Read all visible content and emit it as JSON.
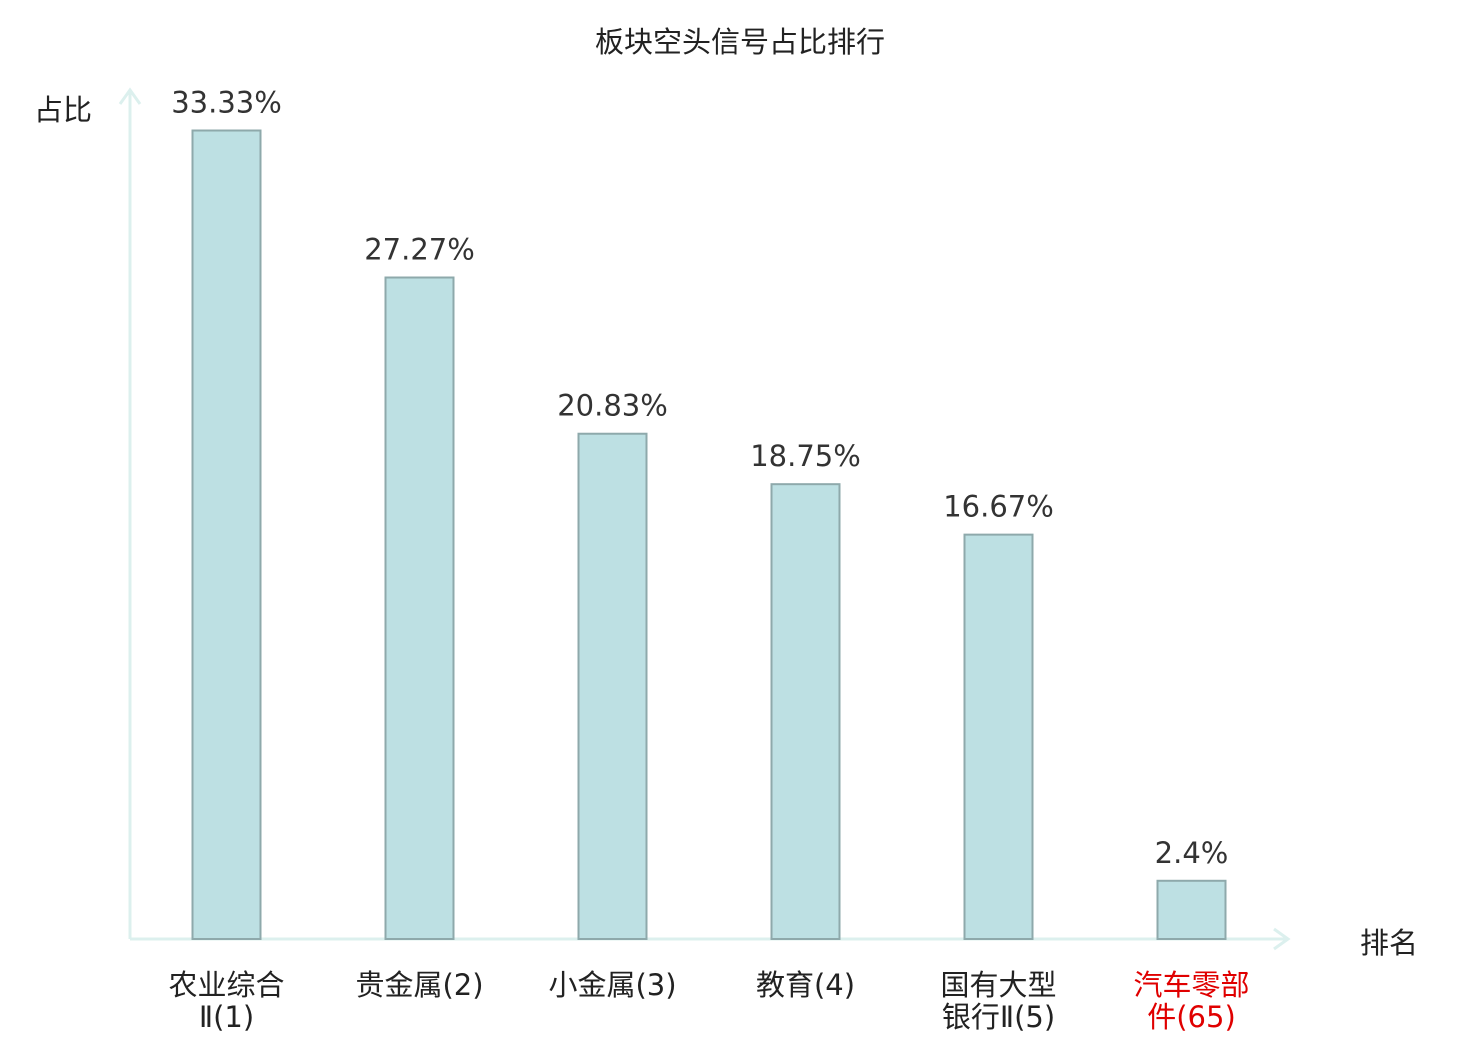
{
  "chart_data": {
    "type": "bar",
    "title": "板块空头信号占比排行",
    "y_label": "占比",
    "x_label": "排名",
    "categories": [
      "农业综合Ⅱ(1)",
      "贵金属(2)",
      "小金属(3)",
      "教育(4)",
      "国有大型银行Ⅱ(5)",
      "汽车零部件(65)"
    ],
    "category_colors": [
      "#222222",
      "#222222",
      "#222222",
      "#222222",
      "#222222",
      "#e00000"
    ],
    "values": [
      33.33,
      27.27,
      20.83,
      18.75,
      16.67,
      2.4
    ],
    "value_labels": [
      "33.33%",
      "27.27%",
      "20.83%",
      "18.75%",
      "16.67%",
      "2.4%"
    ],
    "color": "#bde0e3",
    "ylim": [
      0,
      35
    ]
  }
}
